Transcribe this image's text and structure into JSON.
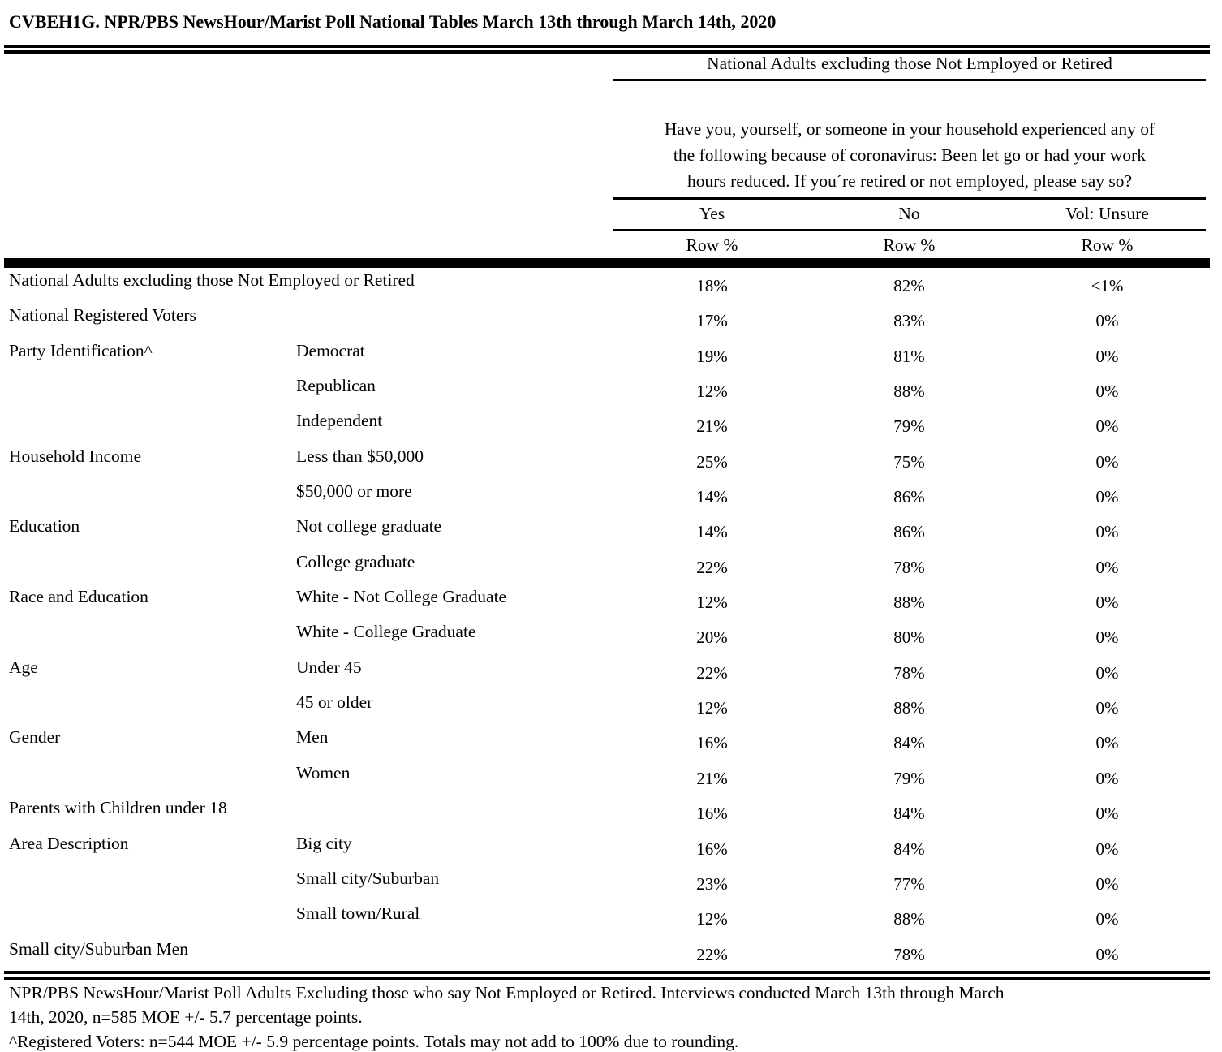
{
  "title": "CVBEH1G. NPR/PBS NewsHour/Marist Poll National Tables March 13th through March 14th, 2020",
  "population_header": "National Adults excluding those Not Employed or Retired",
  "question_lines": [
    "Have you, yourself, or someone in your household experienced any of",
    "the following because of coronavirus: Been let go or had your work",
    "hours reduced. If you´re retired or not employed, please say so?"
  ],
  "columns": [
    {
      "label": "Yes",
      "sub": "Row %"
    },
    {
      "label": "No",
      "sub": "Row %"
    },
    {
      "label": "Vol: Unsure",
      "sub": "Row %"
    }
  ],
  "table": {
    "rows": [
      {
        "group": "National Adults excluding those Not Employed or Retired",
        "subgroup": "",
        "yes": "18%",
        "no": "82%",
        "unsure": "<1%"
      },
      {
        "group": "National Registered Voters",
        "subgroup": "",
        "yes": "17%",
        "no": "83%",
        "unsure": "0%"
      },
      {
        "group": "Party Identification^",
        "subgroup": "Democrat",
        "yes": "19%",
        "no": "81%",
        "unsure": "0%"
      },
      {
        "group": "",
        "subgroup": "Republican",
        "yes": "12%",
        "no": "88%",
        "unsure": "0%"
      },
      {
        "group": "",
        "subgroup": "Independent",
        "yes": "21%",
        "no": "79%",
        "unsure": "0%"
      },
      {
        "group": "Household Income",
        "subgroup": "Less than $50,000",
        "yes": "25%",
        "no": "75%",
        "unsure": "0%"
      },
      {
        "group": "",
        "subgroup": "$50,000 or more",
        "yes": "14%",
        "no": "86%",
        "unsure": "0%"
      },
      {
        "group": "Education",
        "subgroup": "Not college graduate",
        "yes": "14%",
        "no": "86%",
        "unsure": "0%"
      },
      {
        "group": "",
        "subgroup": "College graduate",
        "yes": "22%",
        "no": "78%",
        "unsure": "0%"
      },
      {
        "group": "Race and Education",
        "subgroup": "White - Not College Graduate",
        "yes": "12%",
        "no": "88%",
        "unsure": "0%"
      },
      {
        "group": "",
        "subgroup": "White - College Graduate",
        "yes": "20%",
        "no": "80%",
        "unsure": "0%"
      },
      {
        "group": "Age",
        "subgroup": "Under 45",
        "yes": "22%",
        "no": "78%",
        "unsure": "0%"
      },
      {
        "group": "",
        "subgroup": "45 or older",
        "yes": "12%",
        "no": "88%",
        "unsure": "0%"
      },
      {
        "group": "Gender",
        "subgroup": "Men",
        "yes": "16%",
        "no": "84%",
        "unsure": "0%"
      },
      {
        "group": "",
        "subgroup": "Women",
        "yes": "21%",
        "no": "79%",
        "unsure": "0%"
      },
      {
        "group": "Parents with Children under 18",
        "subgroup": "",
        "yes": "16%",
        "no": "84%",
        "unsure": "0%"
      },
      {
        "group": "Area Description",
        "subgroup": "Big city",
        "yes": "16%",
        "no": "84%",
        "unsure": "0%"
      },
      {
        "group": "",
        "subgroup": "Small city/Suburban",
        "yes": "23%",
        "no": "77%",
        "unsure": "0%"
      },
      {
        "group": "",
        "subgroup": "Small town/Rural",
        "yes": "12%",
        "no": "88%",
        "unsure": "0%"
      },
      {
        "group": "Small city/Suburban Men",
        "subgroup": "",
        "yes": "22%",
        "no": "78%",
        "unsure": "0%"
      }
    ]
  },
  "footnotes": [
    "NPR/PBS NewsHour/Marist Poll Adults Excluding those who say Not Employed or Retired. Interviews conducted March 13th through March",
    "14th, 2020, n=585 MOE +/- 5.7 percentage points.",
    "^Registered Voters: n=544 MOE +/- 5.9 percentage points. Totals may not add to 100% due to rounding."
  ],
  "colors": {
    "text": "#000000",
    "background": "#ffffff",
    "rule": "#000000"
  }
}
